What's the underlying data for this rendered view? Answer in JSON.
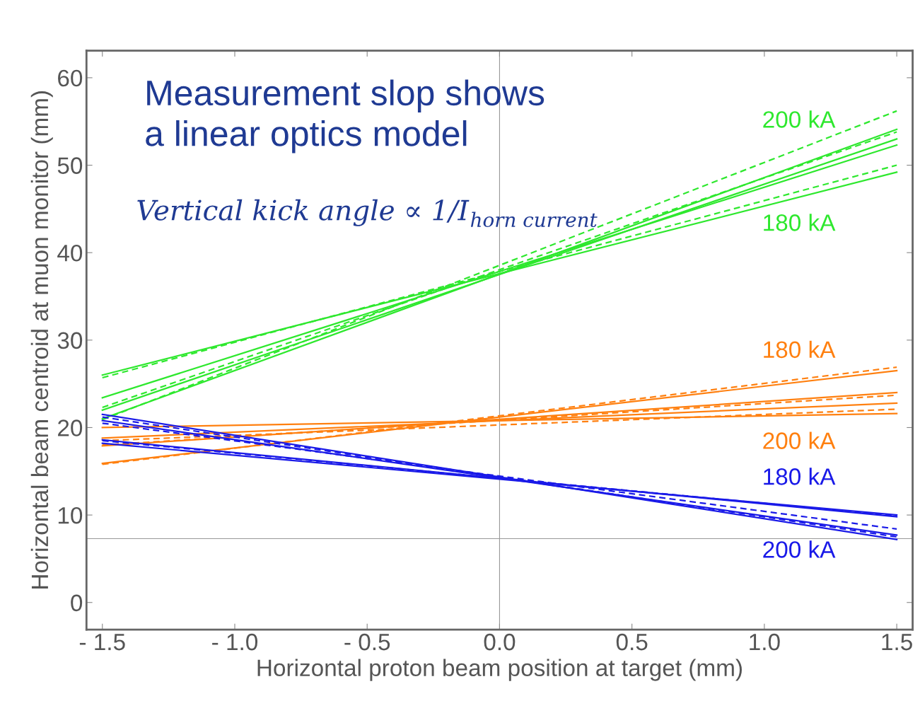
{
  "chart_data": {
    "type": "line",
    "xlabel": "Horizontal proton beam position at target (mm)",
    "ylabel": "Horizontal beam centroid at muon monitor (mm)",
    "xlim": [
      -1.56,
      1.56
    ],
    "ylim": [
      -3.1,
      63.1
    ],
    "xticks": [
      {
        "value": -1.5,
        "label": "- 1.5"
      },
      {
        "value": -1.0,
        "label": "- 1.0"
      },
      {
        "value": -0.5,
        "label": "- 0.5"
      },
      {
        "value": 0,
        "label": "0.0"
      },
      0.5,
      {
        "value": 1,
        "label": "1.0"
      },
      1.5
    ],
    "yticks": [
      0,
      10,
      20,
      30,
      40,
      50,
      60
    ],
    "grid": false,
    "x": [
      -1.5,
      1.5
    ],
    "series": [
      {
        "name": "180 kA",
        "color": "#2ee82e",
        "values": [
          26.0,
          49.2
        ]
      },
      {
        "color": "#2ee82e",
        "values": [
          23.4,
          52.3
        ]
      },
      {
        "color": "#2ee82e",
        "values": [
          22.0,
          53.0
        ]
      },
      {
        "color": "#2ee82e",
        "values": [
          21.0,
          54.1
        ]
      },
      {
        "color": "#2ee82e",
        "values": [
          25.7,
          50.0
        ],
        "line_style": "dashed"
      },
      {
        "color": "#2ee82e",
        "values": [
          22.3,
          53.8
        ],
        "line_style": "dashed"
      },
      {
        "name": "200 kA",
        "color": "#2ee82e",
        "values": [
          20.9,
          56.2
        ],
        "line_style": "dashed"
      },
      {
        "color": "#ff8010",
        "values": [
          15.9,
          26.5
        ]
      },
      {
        "color": "#ff8010",
        "values": [
          17.9,
          24.0
        ]
      },
      {
        "color": "#ff8010",
        "values": [
          18.8,
          22.8
        ]
      },
      {
        "name": "200 kA",
        "color": "#ff8010",
        "values": [
          20.0,
          21.6
        ]
      },
      {
        "name": "180 kA",
        "color": "#ff8010",
        "values": [
          15.8,
          26.9
        ],
        "line_style": "dashed"
      },
      {
        "color": "#ff8010",
        "values": [
          18.0,
          23.7
        ],
        "line_style": "dashed"
      },
      {
        "color": "#ff8010",
        "values": [
          18.5,
          22.1
        ],
        "line_style": "dashed"
      },
      {
        "name": "200 kA",
        "color": "#1a1ae8",
        "values": [
          21.5,
          7.2
        ]
      },
      {
        "color": "#1a1ae8",
        "values": [
          20.8,
          7.7
        ]
      },
      {
        "color": "#1a1ae8",
        "values": [
          18.6,
          9.8
        ]
      },
      {
        "name": "180 kA",
        "color": "#1a1ae8",
        "values": [
          18.2,
          10.0
        ]
      },
      {
        "color": "#1a1ae8",
        "values": [
          21.2,
          7.5
        ],
        "line_style": "dashed"
      },
      {
        "color": "#1a1ae8",
        "values": [
          20.5,
          8.4
        ],
        "line_style": "dashed"
      },
      {
        "color": "#1a1ae8",
        "values": [
          18.5,
          9.9
        ],
        "line_style": "dashed"
      }
    ],
    "ref_lines": [
      {
        "axis": "x",
        "value": 0,
        "color": "#999999"
      },
      {
        "axis": "y",
        "value": 7.3,
        "color": "#999999"
      }
    ],
    "annotations": [
      "Measurement slop shows\na linear optics model",
      "Vertical kick angle ∝ 1/I$_{horn current}$"
    ]
  }
}
